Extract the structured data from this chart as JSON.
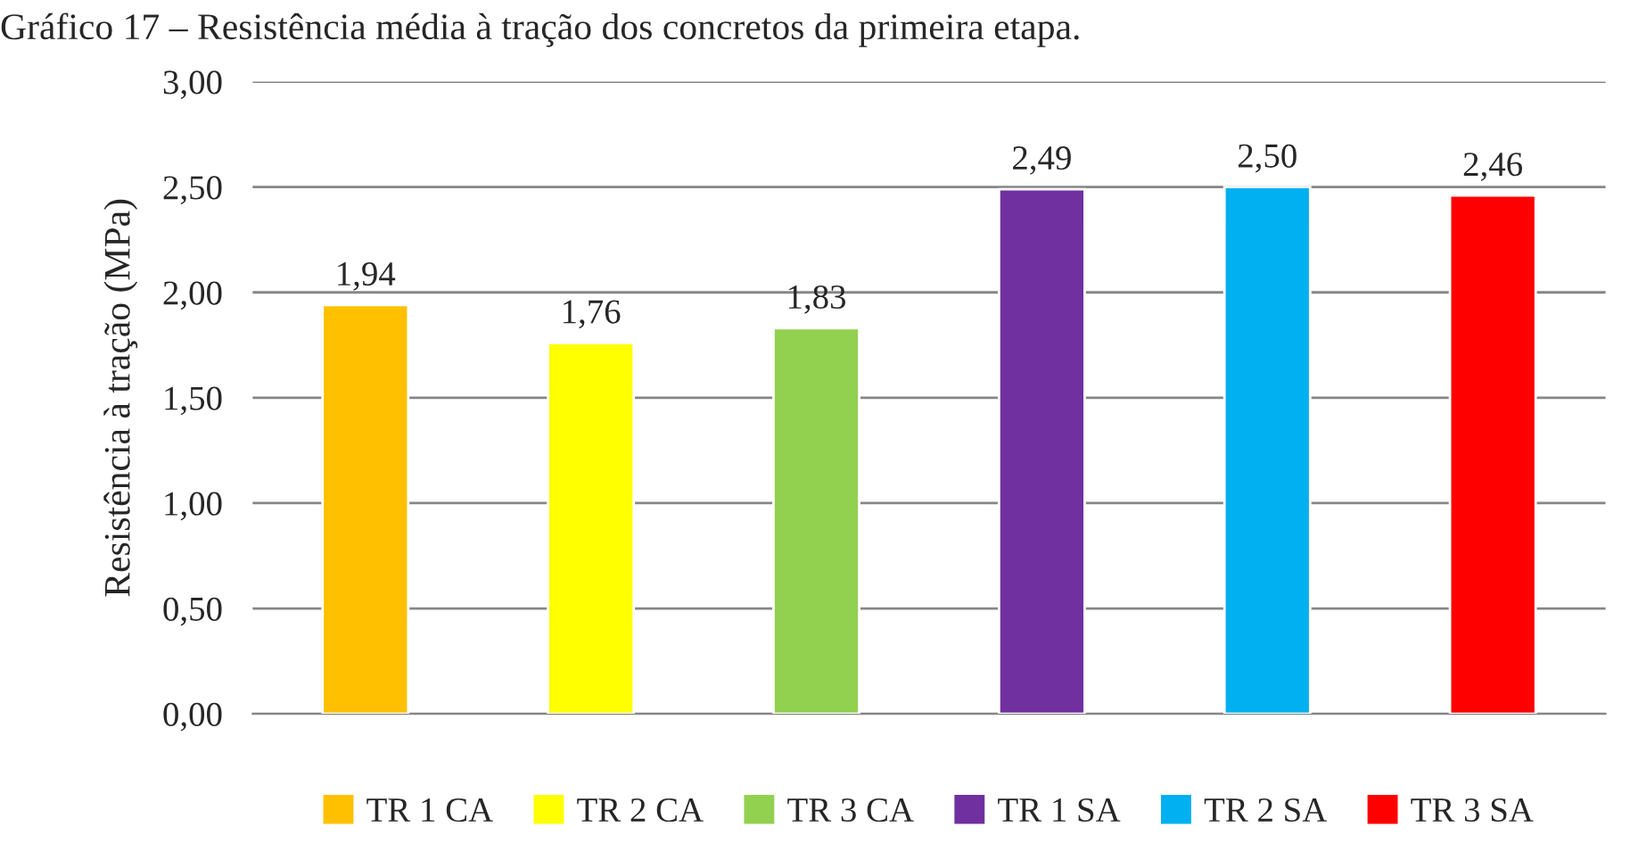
{
  "chart_data": {
    "type": "bar",
    "title": "Gráfico 17 – Resistência média à tração dos concretos da primeira etapa.",
    "ylabel": "Resistência à tração (MPa)",
    "categories": [
      null,
      null,
      null,
      null,
      null,
      null
    ],
    "series": [
      {
        "name": "TR 1 CA",
        "color": "#ffc000",
        "values": [
          1.94,
          null,
          null,
          null,
          null,
          null
        ],
        "value_labels": [
          "1,94",
          null,
          null,
          null,
          null,
          null
        ]
      },
      {
        "name": "TR 2 CA",
        "color": "#ffff00",
        "values": [
          null,
          1.76,
          null,
          null,
          null,
          null
        ],
        "value_labels": [
          null,
          "1,76",
          null,
          null,
          null,
          null
        ]
      },
      {
        "name": "TR 3 CA",
        "color": "#92d050",
        "values": [
          null,
          null,
          1.83,
          null,
          null,
          null
        ],
        "value_labels": [
          null,
          null,
          "1,83",
          null,
          null,
          null
        ]
      },
      {
        "name": "TR 1 SA",
        "color": "#7030a0",
        "values": [
          null,
          null,
          null,
          2.49,
          null,
          null
        ],
        "value_labels": [
          null,
          null,
          null,
          "2,49",
          null,
          null
        ]
      },
      {
        "name": "TR 2 SA",
        "color": "#00b0f0",
        "values": [
          null,
          null,
          null,
          null,
          2.5,
          null
        ],
        "value_labels": [
          null,
          null,
          null,
          null,
          "2,50",
          null
        ]
      },
      {
        "name": "TR 3 SA",
        "color": "#ff0000",
        "values": [
          null,
          null,
          null,
          null,
          null,
          2.46
        ],
        "value_labels": [
          null,
          null,
          null,
          null,
          null,
          "2,46"
        ]
      }
    ],
    "ylim": [
      0,
      3
    ],
    "yticks": [
      {
        "value": 0,
        "label": "0,00"
      },
      {
        "value": 0.5,
        "label": "0,50"
      },
      {
        "value": 1,
        "label": "1,00"
      },
      {
        "value": 1.5,
        "label": "1,50"
      },
      {
        "value": 2,
        "label": "2,00"
      },
      {
        "value": 2.5,
        "label": "2,50"
      },
      {
        "value": 3,
        "label": "3,00"
      }
    ],
    "grid": "y",
    "legend": "bottom"
  }
}
